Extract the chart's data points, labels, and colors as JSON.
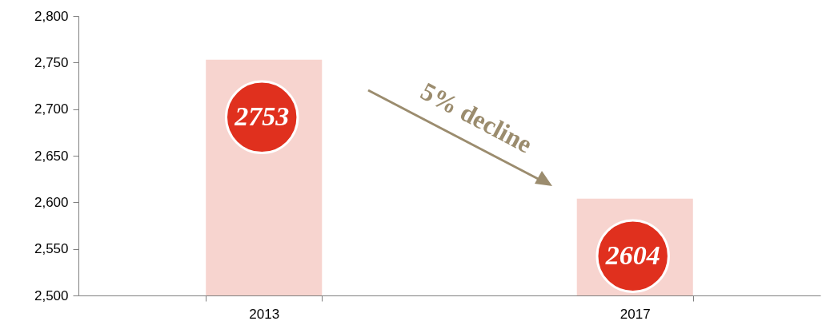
{
  "chart_data": {
    "type": "bar",
    "categories": [
      "2013",
      "2017"
    ],
    "values": [
      2753,
      2604
    ],
    "color": "#f7d4cf",
    "ylim": [
      2500,
      2800
    ],
    "yticks": [
      {
        "value": 2500,
        "label": "2,500"
      },
      {
        "value": 2550,
        "label": "2,550"
      },
      {
        "value": 2600,
        "label": "2,600"
      },
      {
        "value": 2650,
        "label": "2,650"
      },
      {
        "value": 2700,
        "label": "2,700"
      },
      {
        "value": 2750,
        "label": "2,750"
      },
      {
        "value": 2800,
        "label": "2,800"
      }
    ],
    "data_labels": true,
    "grid": false,
    "annotations": [
      "5% decline"
    ]
  }
}
